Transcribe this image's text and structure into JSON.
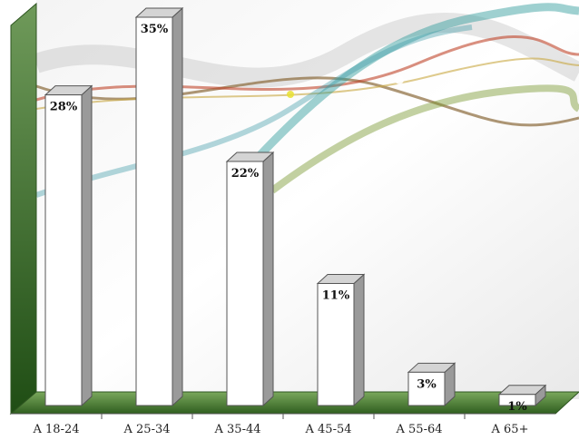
{
  "chart_data": {
    "type": "bar",
    "categories": [
      "A 18-24",
      "A 25-34",
      "A 35-44",
      "A 45-54",
      "A 55-64",
      "A 65+"
    ],
    "values": [
      28,
      35,
      22,
      11,
      3,
      1
    ],
    "value_labels": [
      "28%",
      "35%",
      "22%",
      "11%",
      "3%",
      "1%"
    ],
    "ylim": [
      0,
      35
    ],
    "grid": false,
    "legend": "none",
    "style": "3d-bars",
    "colors": {
      "bar_front": "#ffffff",
      "bar_side": "#9a9a9a",
      "bar_top": "#d4d4d4",
      "wall": "#3a6a2a",
      "floor": "#4a7f32"
    }
  }
}
